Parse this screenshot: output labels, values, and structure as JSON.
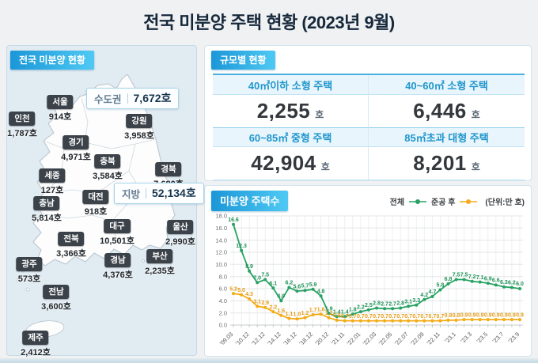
{
  "page": {
    "title": "전국 미분양 주택 현황 (2023년 9월)"
  },
  "map_panel": {
    "header": "전국 미분양 현황",
    "callouts": [
      {
        "label": "수도권",
        "value": "7,672호"
      },
      {
        "label": "지방",
        "value": "52,134호"
      }
    ],
    "regions": [
      {
        "name": "서울",
        "value": "914호"
      },
      {
        "name": "인천",
        "value": "1,787호"
      },
      {
        "name": "경기",
        "value": "4,971호"
      },
      {
        "name": "강원",
        "value": "3,958호"
      },
      {
        "name": "충북",
        "value": "3,584호"
      },
      {
        "name": "세종",
        "value": "127호"
      },
      {
        "name": "경북",
        "value": "7,680호"
      },
      {
        "name": "대전",
        "value": "918호"
      },
      {
        "name": "충남",
        "value": "5,814호"
      },
      {
        "name": "대구",
        "value": "10,501호"
      },
      {
        "name": "울산",
        "value": "2,990호"
      },
      {
        "name": "전북",
        "value": "3,366호"
      },
      {
        "name": "경남",
        "value": "4,376호"
      },
      {
        "name": "부산",
        "value": "2,235호"
      },
      {
        "name": "광주",
        "value": "573호"
      },
      {
        "name": "전남",
        "value": "3,600호"
      },
      {
        "name": "제주",
        "value": "2,412호"
      }
    ]
  },
  "size_panel": {
    "header": "규모별 현황",
    "cells": [
      {
        "label": "40㎡이하 소형 주택",
        "value": "2,255",
        "unit": "호"
      },
      {
        "label": "40~60㎡ 소형 주택",
        "value": "6,446",
        "unit": "호"
      },
      {
        "label": "60~85㎡ 중형 주택",
        "value": "42,904",
        "unit": "호"
      },
      {
        "label": "85㎡초과 대형 주택",
        "value": "8,201",
        "unit": "호"
      }
    ]
  },
  "chart_panel": {
    "header": "미분양 주택수",
    "unit_note": "(단위:만 호)"
  },
  "chart_data": {
    "type": "line",
    "title": "미분양 주택수",
    "unit": "만 호",
    "ylim": [
      0,
      18
    ],
    "ytick_step": 2,
    "grid": true,
    "legend_position": "top-right",
    "x_tick_labels": [
      "'09.03",
      "",
      "'10.12",
      "",
      "'12.12",
      "",
      "'14.12",
      "",
      "'16.12",
      "",
      "'18.12",
      "",
      "'20.12",
      "",
      "'21.11",
      "",
      "'22.01",
      "",
      "'22.03",
      "",
      "'22.05",
      "",
      "'22.07",
      "",
      "'22.09",
      "",
      "'22.11",
      "",
      "'23.1",
      "",
      "'23.3",
      "",
      "'23.5",
      "",
      "'23.7",
      "",
      "'23.9"
    ],
    "series": [
      {
        "name": "전체",
        "color": "#27a263",
        "label_color": "#1e9157",
        "values": [
          16.6,
          12.3,
          8.9,
          7.0,
          7.5,
          6.1,
          4.0,
          6.2,
          5.6,
          5.7,
          5.9,
          4.8,
          1.9,
          1.4,
          1.4,
          1.8,
          2.2,
          2.5,
          2.8,
          2.7,
          2.7,
          2.8,
          3.1,
          3.3,
          4.2,
          4.7,
          5.8,
          6.8,
          7.5,
          7.5,
          7.2,
          7.1,
          6.9,
          6.6,
          6.3,
          6.2,
          6.0
        ]
      },
      {
        "name": "준공 후",
        "color": "#f4ab16",
        "label_color": "#e59c12",
        "values": [
          5.2,
          5.0,
          4.3,
          3.1,
          2.9,
          2.2,
          1.6,
          1.1,
          1.0,
          1.2,
          1.7,
          1.8,
          1.2,
          0.8,
          0.7,
          0.7,
          0.7,
          0.7,
          0.7,
          0.7,
          0.7,
          0.7,
          0.7,
          0.7,
          0.7,
          0.7,
          0.7,
          0.8,
          0.8,
          0.9,
          0.9,
          0.9,
          0.9,
          0.9,
          0.9,
          0.9,
          0.9
        ]
      }
    ]
  }
}
